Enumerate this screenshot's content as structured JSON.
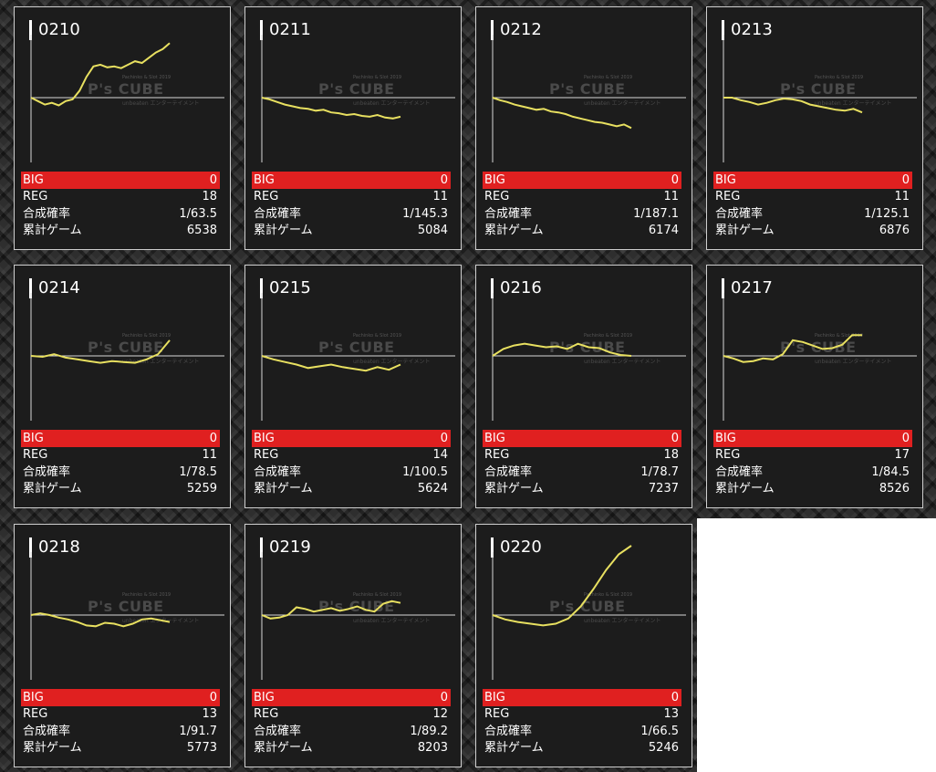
{
  "labels": {
    "big": "BIG",
    "reg": "REG",
    "rate": "合成確率",
    "games": "累計ゲーム"
  },
  "watermark": {
    "sub": "Pachinko & Slot 2019",
    "logo": "P's CUBE",
    "foot": "unbeaten エンターテイメント"
  },
  "colors": {
    "line": "#e8e060",
    "big_bar": "#e02020",
    "card_bg": "#1c1c1c"
  },
  "machines": [
    {
      "id": "0210",
      "big": "0",
      "reg": "18",
      "rate": "1/63.5",
      "games": "6538",
      "trend": [
        0,
        -4,
        -8,
        -6,
        -9,
        -4,
        -2,
        8,
        24,
        36,
        38,
        35,
        36,
        34,
        38,
        42,
        40,
        46,
        52,
        56,
        63
      ]
    },
    {
      "id": "0211",
      "big": "0",
      "reg": "11",
      "rate": "1/145.3",
      "games": "5084",
      "trend": [
        0,
        -2,
        -5,
        -8,
        -10,
        -12,
        -13,
        -15,
        -14,
        -17,
        -18,
        -20,
        -19,
        -21,
        -22,
        -20,
        -23,
        -24,
        -22
      ]
    },
    {
      "id": "0212",
      "big": "0",
      "reg": "11",
      "rate": "1/187.1",
      "games": "6174",
      "trend": [
        0,
        -3,
        -5,
        -8,
        -10,
        -12,
        -14,
        -13,
        -16,
        -17,
        -19,
        -22,
        -24,
        -26,
        -28,
        -29,
        -31,
        -33,
        -31,
        -35
      ]
    },
    {
      "id": "0213",
      "big": "0",
      "reg": "11",
      "rate": "1/125.1",
      "games": "6876",
      "trend": [
        0,
        0,
        -3,
        -5,
        -8,
        -6,
        -3,
        -1,
        -2,
        -4,
        -8,
        -10,
        -12,
        -14,
        -15,
        -13,
        -17
      ]
    },
    {
      "id": "0214",
      "big": "0",
      "reg": "11",
      "rate": "1/78.5",
      "games": "5259",
      "trend": [
        0,
        -1,
        2,
        -2,
        -4,
        -6,
        -8,
        -6,
        -7,
        -8,
        -4,
        2,
        18
      ]
    },
    {
      "id": "0215",
      "big": "0",
      "reg": "14",
      "rate": "1/100.5",
      "games": "5624",
      "trend": [
        0,
        -4,
        -7,
        -10,
        -14,
        -12,
        -10,
        -13,
        -15,
        -17,
        -13,
        -16,
        -10
      ]
    },
    {
      "id": "0216",
      "big": "0",
      "reg": "18",
      "rate": "1/78.7",
      "games": "7237",
      "trend": [
        0,
        8,
        12,
        14,
        12,
        10,
        11,
        8,
        14,
        10,
        9,
        4,
        1,
        0
      ]
    },
    {
      "id": "0217",
      "big": "0",
      "reg": "17",
      "rate": "1/84.5",
      "games": "8526",
      "trend": [
        0,
        -3,
        -7,
        -6,
        -3,
        -4,
        2,
        18,
        16,
        12,
        8,
        9,
        13,
        24,
        24
      ]
    },
    {
      "id": "0218",
      "big": "0",
      "reg": "13",
      "rate": "1/91.7",
      "games": "5773",
      "trend": [
        0,
        2,
        0,
        -3,
        -5,
        -8,
        -12,
        -13,
        -9,
        -10,
        -13,
        -10,
        -5,
        -4,
        -6,
        -8
      ]
    },
    {
      "id": "0219",
      "big": "0",
      "reg": "12",
      "rate": "1/89.2",
      "games": "8203",
      "trend": [
        0,
        -4,
        -3,
        0,
        9,
        7,
        4,
        6,
        8,
        5,
        7,
        10,
        6,
        4,
        13,
        16,
        14
      ]
    },
    {
      "id": "0220",
      "big": "0",
      "reg": "13",
      "rate": "1/66.5",
      "games": "5246",
      "trend": [
        0,
        -5,
        -8,
        -10,
        -12,
        -10,
        -4,
        10,
        30,
        52,
        70,
        80
      ]
    }
  ]
}
